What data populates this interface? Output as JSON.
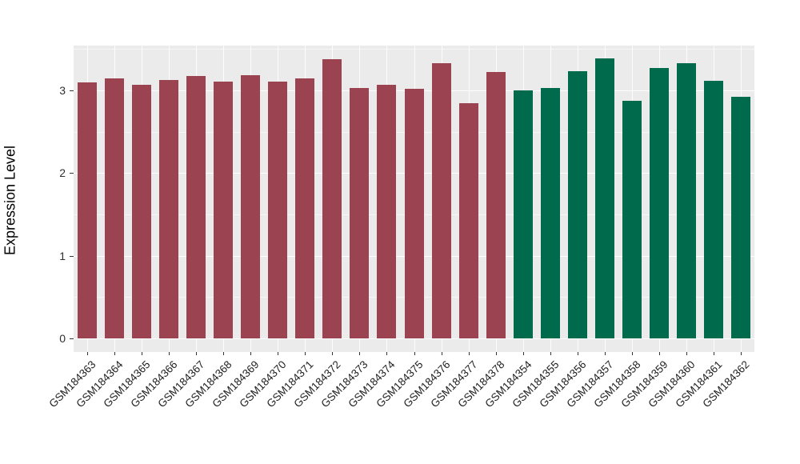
{
  "figure": {
    "kind": "expression-bar-plot",
    "background_color": "#FFFFFF",
    "panel_background_color": "#EBEBEB",
    "gridline_color": "#FFFFFF",
    "axis_text_color": "#1F1F1F",
    "tick_mark_color": "#333333"
  },
  "chart_data": {
    "type": "bar",
    "title": "",
    "xlabel": "",
    "ylabel": "Expression Level",
    "legend": "none",
    "grid": "on",
    "ylim": [
      -0.17,
      3.55
    ],
    "yticks": [
      0,
      1,
      2,
      3
    ],
    "minor_gridlines": [
      0.5,
      1.5,
      2.5,
      3.5
    ],
    "categories": [
      "GSM184363",
      "GSM184364",
      "GSM184365",
      "GSM184366",
      "GSM184367",
      "GSM184368",
      "GSM184369",
      "GSM184370",
      "GSM184371",
      "GSM184372",
      "GSM184373",
      "GSM184374",
      "GSM184375",
      "GSM184376",
      "GSM184377",
      "GSM184378",
      "GSM184354",
      "GSM184355",
      "GSM184356",
      "GSM184357",
      "GSM184358",
      "GSM184359",
      "GSM184360",
      "GSM184361",
      "GSM184362"
    ],
    "values": [
      3.1,
      3.15,
      3.07,
      3.13,
      3.17,
      3.11,
      3.18,
      3.11,
      3.15,
      3.38,
      3.03,
      3.07,
      3.02,
      3.33,
      2.85,
      3.22,
      3.0,
      3.03,
      3.23,
      3.39,
      2.87,
      3.27,
      3.33,
      3.12,
      2.92
    ],
    "group_split_index": 16,
    "group_colors": {
      "first_group": "#9C4351",
      "second_group": "#006A4D"
    }
  }
}
